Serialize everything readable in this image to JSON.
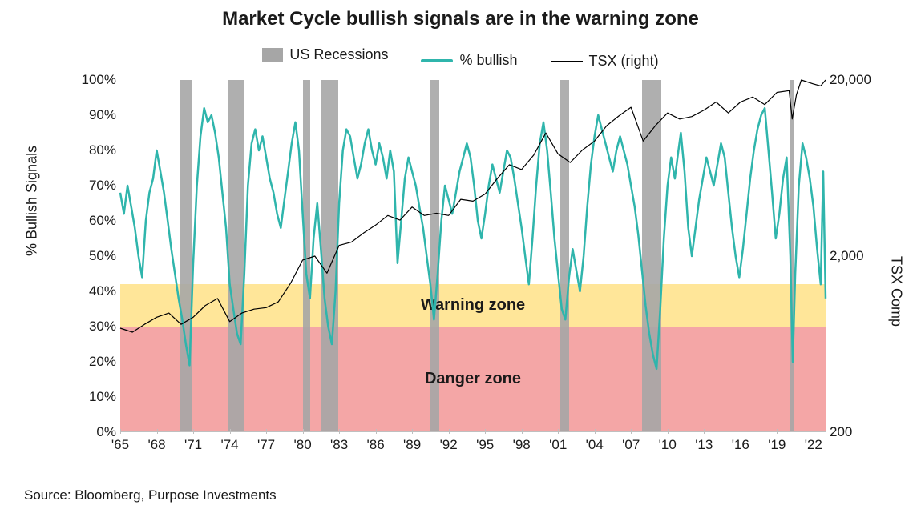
{
  "title": "Market Cycle bullish signals are in the warning zone",
  "title_fontsize": 24,
  "source": "Source: Bloomberg, Purpose Investments",
  "legend": {
    "recessions": "US Recessions",
    "bullish": "% bullish",
    "tsx": "TSX (right)"
  },
  "colors": {
    "recession_bar": "#a6a6a6",
    "bullish_line": "#2fb5ac",
    "tsx_line": "#000000",
    "warning_zone": "#ffe699",
    "danger_zone": "#f4a6a6",
    "background": "#ffffff",
    "text": "#1a1a1a",
    "axis": "#bfbfbf"
  },
  "zones": {
    "warning": {
      "label": "Warning zone",
      "y_min": 30,
      "y_max": 42
    },
    "danger": {
      "label": "Danger zone",
      "y_min": 0,
      "y_max": 30
    }
  },
  "y_left": {
    "label": "% Bullish Signals",
    "min": 0,
    "max": 100,
    "step": 10,
    "suffix": "%"
  },
  "y_right": {
    "label": "TSX Comp",
    "scale": "log",
    "min": 200,
    "max": 20000,
    "ticks": [
      200,
      2000,
      20000
    ]
  },
  "x_axis": {
    "min": 1965,
    "max": 2023,
    "ticks": [
      1965,
      1968,
      1971,
      1974,
      1977,
      1980,
      1983,
      1986,
      1989,
      1992,
      1995,
      1998,
      2001,
      2004,
      2007,
      2010,
      2013,
      2016,
      2019,
      2022
    ],
    "tick_prefix": "'"
  },
  "recessions": [
    {
      "start": 1969.9,
      "end": 1970.9
    },
    {
      "start": 1973.8,
      "end": 1975.2
    },
    {
      "start": 1980.0,
      "end": 1980.6
    },
    {
      "start": 1981.5,
      "end": 1982.9
    },
    {
      "start": 1990.5,
      "end": 1991.2
    },
    {
      "start": 2001.2,
      "end": 2001.9
    },
    {
      "start": 2007.9,
      "end": 2009.5
    },
    {
      "start": 2020.1,
      "end": 2020.4
    }
  ],
  "bullish_series": {
    "line_width": 2.5,
    "points": [
      [
        1965.0,
        68
      ],
      [
        1965.3,
        62
      ],
      [
        1965.6,
        70
      ],
      [
        1965.9,
        64
      ],
      [
        1966.2,
        58
      ],
      [
        1966.5,
        50
      ],
      [
        1966.8,
        44
      ],
      [
        1967.1,
        60
      ],
      [
        1967.4,
        68
      ],
      [
        1967.7,
        72
      ],
      [
        1968.0,
        80
      ],
      [
        1968.3,
        74
      ],
      [
        1968.6,
        68
      ],
      [
        1968.9,
        60
      ],
      [
        1969.2,
        52
      ],
      [
        1969.5,
        45
      ],
      [
        1969.8,
        38
      ],
      [
        1970.1,
        32
      ],
      [
        1970.4,
        25
      ],
      [
        1970.7,
        19
      ],
      [
        1971.0,
        48
      ],
      [
        1971.3,
        70
      ],
      [
        1971.6,
        84
      ],
      [
        1971.9,
        92
      ],
      [
        1972.2,
        88
      ],
      [
        1972.5,
        90
      ],
      [
        1972.8,
        85
      ],
      [
        1973.1,
        78
      ],
      [
        1973.4,
        68
      ],
      [
        1973.7,
        58
      ],
      [
        1974.0,
        42
      ],
      [
        1974.3,
        35
      ],
      [
        1974.6,
        28
      ],
      [
        1974.9,
        25
      ],
      [
        1975.2,
        45
      ],
      [
        1975.5,
        70
      ],
      [
        1975.8,
        82
      ],
      [
        1976.1,
        86
      ],
      [
        1976.4,
        80
      ],
      [
        1976.7,
        84
      ],
      [
        1977.0,
        78
      ],
      [
        1977.3,
        72
      ],
      [
        1977.6,
        68
      ],
      [
        1977.9,
        62
      ],
      [
        1978.2,
        58
      ],
      [
        1978.5,
        66
      ],
      [
        1978.8,
        74
      ],
      [
        1979.1,
        82
      ],
      [
        1979.4,
        88
      ],
      [
        1979.7,
        80
      ],
      [
        1980.0,
        62
      ],
      [
        1980.3,
        45
      ],
      [
        1980.6,
        38
      ],
      [
        1980.9,
        55
      ],
      [
        1981.2,
        65
      ],
      [
        1981.5,
        52
      ],
      [
        1981.8,
        38
      ],
      [
        1982.1,
        30
      ],
      [
        1982.4,
        25
      ],
      [
        1982.7,
        40
      ],
      [
        1983.0,
        65
      ],
      [
        1983.3,
        80
      ],
      [
        1983.6,
        86
      ],
      [
        1983.9,
        84
      ],
      [
        1984.2,
        78
      ],
      [
        1984.5,
        72
      ],
      [
        1984.8,
        76
      ],
      [
        1985.1,
        82
      ],
      [
        1985.4,
        86
      ],
      [
        1985.7,
        80
      ],
      [
        1986.0,
        76
      ],
      [
        1986.3,
        82
      ],
      [
        1986.6,
        78
      ],
      [
        1986.9,
        72
      ],
      [
        1987.2,
        80
      ],
      [
        1987.5,
        74
      ],
      [
        1987.8,
        48
      ],
      [
        1988.1,
        60
      ],
      [
        1988.4,
        72
      ],
      [
        1988.7,
        78
      ],
      [
        1989.0,
        74
      ],
      [
        1989.3,
        70
      ],
      [
        1989.6,
        64
      ],
      [
        1989.9,
        58
      ],
      [
        1990.2,
        50
      ],
      [
        1990.5,
        42
      ],
      [
        1990.8,
        32
      ],
      [
        1991.1,
        45
      ],
      [
        1991.4,
        60
      ],
      [
        1991.7,
        70
      ],
      [
        1992.0,
        66
      ],
      [
        1992.3,
        62
      ],
      [
        1992.6,
        68
      ],
      [
        1992.9,
        74
      ],
      [
        1993.2,
        78
      ],
      [
        1993.5,
        82
      ],
      [
        1993.8,
        78
      ],
      [
        1994.1,
        70
      ],
      [
        1994.4,
        60
      ],
      [
        1994.7,
        55
      ],
      [
        1995.0,
        62
      ],
      [
        1995.3,
        70
      ],
      [
        1995.6,
        76
      ],
      [
        1995.9,
        72
      ],
      [
        1996.2,
        68
      ],
      [
        1996.5,
        74
      ],
      [
        1996.8,
        80
      ],
      [
        1997.1,
        78
      ],
      [
        1997.4,
        72
      ],
      [
        1997.7,
        65
      ],
      [
        1998.0,
        58
      ],
      [
        1998.3,
        50
      ],
      [
        1998.6,
        42
      ],
      [
        1998.9,
        55
      ],
      [
        1999.2,
        70
      ],
      [
        1999.5,
        82
      ],
      [
        1999.8,
        88
      ],
      [
        2000.1,
        80
      ],
      [
        2000.4,
        68
      ],
      [
        2000.7,
        55
      ],
      [
        2001.0,
        45
      ],
      [
        2001.3,
        35
      ],
      [
        2001.6,
        32
      ],
      [
        2001.9,
        44
      ],
      [
        2002.2,
        52
      ],
      [
        2002.5,
        46
      ],
      [
        2002.8,
        40
      ],
      [
        2003.1,
        50
      ],
      [
        2003.4,
        64
      ],
      [
        2003.7,
        76
      ],
      [
        2004.0,
        84
      ],
      [
        2004.3,
        90
      ],
      [
        2004.6,
        86
      ],
      [
        2004.9,
        82
      ],
      [
        2005.2,
        78
      ],
      [
        2005.5,
        74
      ],
      [
        2005.8,
        80
      ],
      [
        2006.1,
        84
      ],
      [
        2006.4,
        80
      ],
      [
        2006.7,
        76
      ],
      [
        2007.0,
        70
      ],
      [
        2007.3,
        64
      ],
      [
        2007.6,
        56
      ],
      [
        2007.9,
        46
      ],
      [
        2008.2,
        36
      ],
      [
        2008.5,
        28
      ],
      [
        2008.8,
        22
      ],
      [
        2009.1,
        18
      ],
      [
        2009.4,
        35
      ],
      [
        2009.7,
        55
      ],
      [
        2010.0,
        70
      ],
      [
        2010.3,
        78
      ],
      [
        2010.6,
        72
      ],
      [
        2010.9,
        80
      ],
      [
        2011.1,
        85
      ],
      [
        2011.4,
        74
      ],
      [
        2011.7,
        58
      ],
      [
        2012.0,
        50
      ],
      [
        2012.3,
        58
      ],
      [
        2012.6,
        66
      ],
      [
        2012.9,
        72
      ],
      [
        2013.2,
        78
      ],
      [
        2013.5,
        74
      ],
      [
        2013.8,
        70
      ],
      [
        2014.1,
        76
      ],
      [
        2014.4,
        82
      ],
      [
        2014.7,
        78
      ],
      [
        2015.0,
        68
      ],
      [
        2015.3,
        58
      ],
      [
        2015.6,
        50
      ],
      [
        2015.9,
        44
      ],
      [
        2016.2,
        52
      ],
      [
        2016.5,
        62
      ],
      [
        2016.8,
        72
      ],
      [
        2017.1,
        80
      ],
      [
        2017.4,
        86
      ],
      [
        2017.7,
        90
      ],
      [
        2018.0,
        92
      ],
      [
        2018.3,
        80
      ],
      [
        2018.6,
        68
      ],
      [
        2018.9,
        55
      ],
      [
        2019.2,
        62
      ],
      [
        2019.5,
        72
      ],
      [
        2019.8,
        78
      ],
      [
        2020.1,
        50
      ],
      [
        2020.3,
        20
      ],
      [
        2020.5,
        45
      ],
      [
        2020.8,
        70
      ],
      [
        2021.1,
        82
      ],
      [
        2021.4,
        78
      ],
      [
        2021.7,
        72
      ],
      [
        2022.0,
        64
      ],
      [
        2022.3,
        52
      ],
      [
        2022.6,
        42
      ],
      [
        2022.8,
        74
      ],
      [
        2023.0,
        38
      ]
    ]
  },
  "tsx_series": {
    "line_width": 1.2,
    "points": [
      [
        1965,
        780
      ],
      [
        1966,
        740
      ],
      [
        1967,
        820
      ],
      [
        1968,
        900
      ],
      [
        1969,
        950
      ],
      [
        1970,
        820
      ],
      [
        1971,
        900
      ],
      [
        1972,
        1050
      ],
      [
        1973,
        1150
      ],
      [
        1974,
        850
      ],
      [
        1975,
        950
      ],
      [
        1976,
        1000
      ],
      [
        1977,
        1020
      ],
      [
        1978,
        1100
      ],
      [
        1979,
        1400
      ],
      [
        1980,
        1900
      ],
      [
        1981,
        2000
      ],
      [
        1982,
        1600
      ],
      [
        1983,
        2300
      ],
      [
        1984,
        2400
      ],
      [
        1985,
        2700
      ],
      [
        1986,
        3000
      ],
      [
        1987,
        3400
      ],
      [
        1988,
        3200
      ],
      [
        1989,
        3800
      ],
      [
        1990,
        3400
      ],
      [
        1991,
        3500
      ],
      [
        1992,
        3400
      ],
      [
        1993,
        4200
      ],
      [
        1994,
        4100
      ],
      [
        1995,
        4500
      ],
      [
        1996,
        5500
      ],
      [
        1997,
        6600
      ],
      [
        1998,
        6200
      ],
      [
        1999,
        7500
      ],
      [
        2000,
        10000
      ],
      [
        2001,
        7600
      ],
      [
        2002,
        6800
      ],
      [
        2003,
        8000
      ],
      [
        2004,
        9000
      ],
      [
        2005,
        11000
      ],
      [
        2006,
        12500
      ],
      [
        2007,
        14000
      ],
      [
        2008,
        9000
      ],
      [
        2009,
        11000
      ],
      [
        2010,
        13000
      ],
      [
        2011,
        12000
      ],
      [
        2012,
        12400
      ],
      [
        2013,
        13500
      ],
      [
        2014,
        15000
      ],
      [
        2015,
        13000
      ],
      [
        2016,
        15000
      ],
      [
        2017,
        16000
      ],
      [
        2018,
        14500
      ],
      [
        2019,
        17000
      ],
      [
        2020,
        17400
      ],
      [
        2020.25,
        12000
      ],
      [
        2020.6,
        16500
      ],
      [
        2021,
        20000
      ],
      [
        2022,
        19000
      ],
      [
        2022.6,
        18500
      ],
      [
        2023,
        20000
      ]
    ]
  }
}
